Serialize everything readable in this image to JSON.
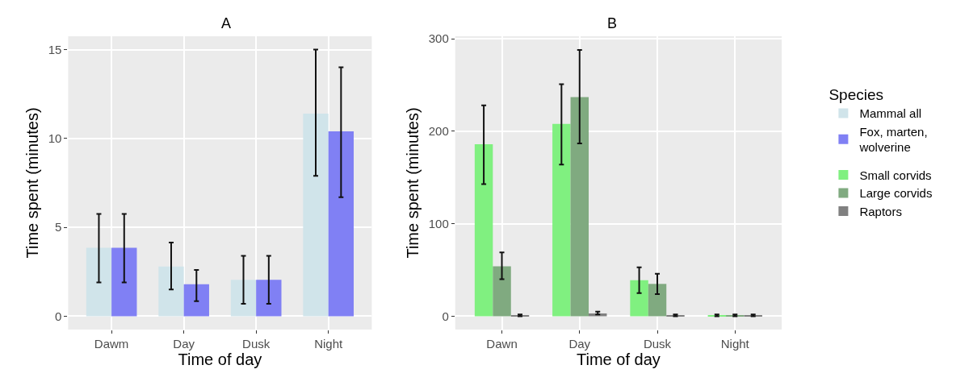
{
  "chart_data": [
    {
      "type": "bar",
      "title": "A",
      "xlabel": "Time of day",
      "ylabel": "Time spent (minutes)",
      "categories": [
        "Dawm",
        "Day",
        "Dusk",
        "Night"
      ],
      "ylim": [
        -0.75,
        15.75
      ],
      "yticks": [
        0,
        5,
        10,
        15
      ],
      "grid": true,
      "legend": "right",
      "legend_title": "Species",
      "series": [
        {
          "name": "Mammal all",
          "color": "#d0e4ea",
          "values": [
            3.85,
            2.8,
            2.05,
            11.4
          ],
          "errors": [
            [
              1.9,
              5.75
            ],
            [
              1.5,
              4.15
            ],
            [
              0.7,
              3.4
            ],
            [
              7.9,
              15.0
            ]
          ]
        },
        {
          "name": "Fox, marten,\nwolverine",
          "color": "#8080f4",
          "values": [
            3.85,
            1.8,
            2.05,
            10.4
          ],
          "errors": [
            [
              1.9,
              5.75
            ],
            [
              0.85,
              2.6
            ],
            [
              0.7,
              3.4
            ],
            [
              6.7,
              14.0
            ]
          ]
        }
      ]
    },
    {
      "type": "bar",
      "title": "B",
      "xlabel": "Time of day",
      "ylabel": "Time spent (minutes)",
      "categories": [
        "Dawn",
        "Day",
        "Dusk",
        "Night"
      ],
      "ylim": [
        -14.4,
        302.8
      ],
      "yticks": [
        0,
        100,
        200,
        300
      ],
      "grid": true,
      "legend": "right",
      "series": [
        {
          "name": "Small corvids",
          "color": "#80f080",
          "values": [
            186,
            208,
            39,
            1
          ],
          "errors": [
            [
              143,
              228
            ],
            [
              164,
              251
            ],
            [
              25,
              53
            ],
            [
              0,
              2
            ]
          ]
        },
        {
          "name": "Large corvids",
          "color": "#80aa80",
          "values": [
            54,
            237,
            35,
            1
          ],
          "errors": [
            [
              40,
              69
            ],
            [
              187,
              288
            ],
            [
              24,
              46
            ],
            [
              0,
              2
            ]
          ]
        },
        {
          "name": "Raptors",
          "color": "#808080",
          "values": [
            1,
            3,
            1,
            1
          ],
          "errors": [
            [
              0,
              2
            ],
            [
              2,
              5
            ],
            [
              0,
              2
            ],
            [
              0,
              2
            ]
          ]
        }
      ]
    }
  ]
}
